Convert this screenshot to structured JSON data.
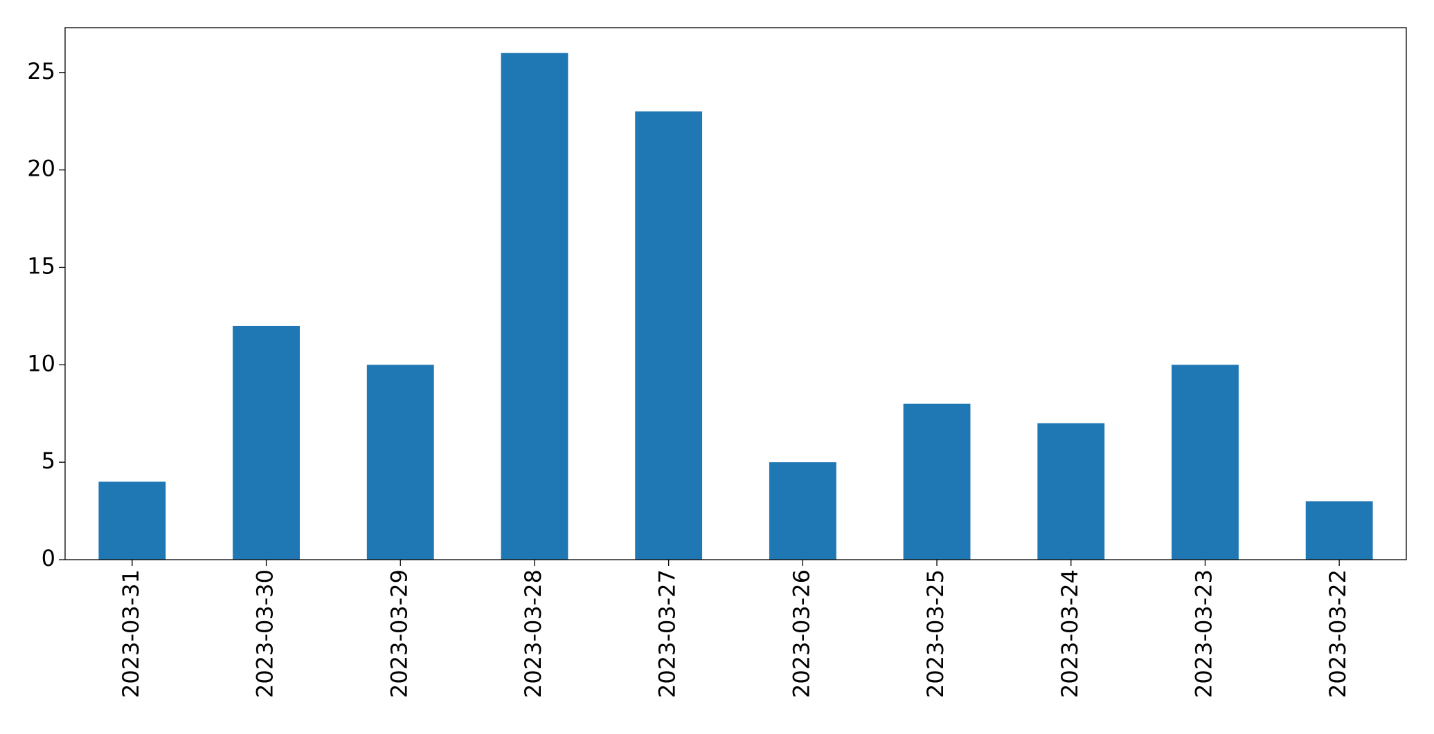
{
  "chart_data": {
    "type": "bar",
    "categories": [
      "2023-03-31",
      "2023-03-30",
      "2023-03-29",
      "2023-03-28",
      "2023-03-27",
      "2023-03-26",
      "2023-03-25",
      "2023-03-24",
      "2023-03-23",
      "2023-03-22"
    ],
    "values": [
      4,
      12,
      10,
      26,
      23,
      5,
      8,
      7,
      10,
      3
    ],
    "color": "#1f77b4",
    "ylim": [
      0,
      27.3
    ],
    "yticks": [
      0,
      5,
      10,
      15,
      20,
      25
    ],
    "grid": false
  }
}
